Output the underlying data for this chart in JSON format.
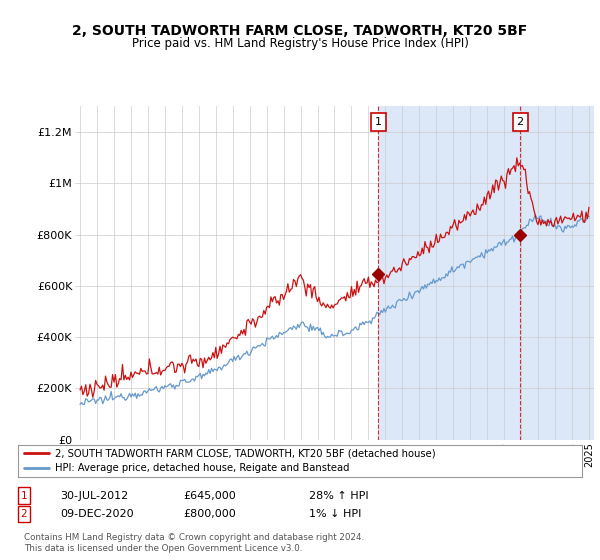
{
  "title": "2, SOUTH TADWORTH FARM CLOSE, TADWORTH, KT20 5BF",
  "subtitle": "Price paid vs. HM Land Registry's House Price Index (HPI)",
  "background_color": "#ffffff",
  "plot_bg_color": "#ffffff",
  "shaded_region_color": "#dce8f8",
  "legend_line1": "2, SOUTH TADWORTH FARM CLOSE, TADWORTH, KT20 5BF (detached house)",
  "legend_line2": "HPI: Average price, detached house, Reigate and Banstead",
  "annotation1_date": "30-JUL-2012",
  "annotation1_price": 645000,
  "annotation1_price_str": "£645,000",
  "annotation1_hpi": "28% ↑ HPI",
  "annotation2_date": "09-DEC-2020",
  "annotation2_price": 800000,
  "annotation2_price_str": "£800,000",
  "annotation2_hpi": "1% ↓ HPI",
  "footer": "Contains HM Land Registry data © Crown copyright and database right 2024.\nThis data is licensed under the Open Government Licence v3.0.",
  "hpi_color": "#6699cc",
  "price_color": "#cc1111",
  "annotation_color": "#cc0000",
  "ylim": [
    0,
    1300000
  ],
  "yticks": [
    0,
    200000,
    400000,
    600000,
    800000,
    1000000,
    1200000
  ],
  "ytick_labels": [
    "£0",
    "£200K",
    "£400K",
    "£600K",
    "£800K",
    "£1M",
    "£1.2M"
  ],
  "xstart_year": 1995,
  "xend_year": 2025
}
